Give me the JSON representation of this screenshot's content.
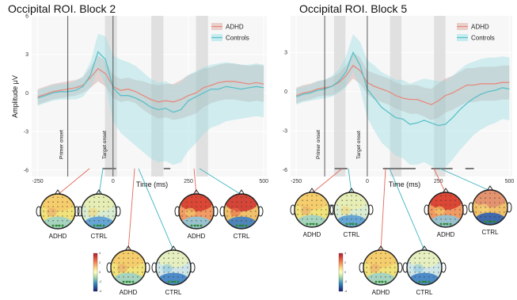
{
  "chart_data": [
    {
      "type": "line",
      "title": "Occipital ROI. Block 2",
      "xlabel": "Time (ms)",
      "ylabel": "Amplitude μV",
      "xlim": [
        -270,
        510
      ],
      "ylim": [
        -6.5,
        6
      ],
      "xticks": [
        "-250",
        "0",
        "250",
        "500"
      ],
      "xtick_values": [
        -250,
        0,
        250,
        500
      ],
      "yticks": [
        "6",
        "3",
        "0",
        "-3",
        "-6"
      ],
      "ytick_values": [
        6,
        3,
        0,
        -3,
        -6
      ],
      "shaded_windows_ms": [
        [
          -27,
          13
        ],
        [
          127,
          167
        ],
        [
          275,
          315
        ]
      ],
      "vlines": [
        {
          "x": -150,
          "label": "Primer onset"
        },
        {
          "x": 0,
          "label": "Target onset"
        }
      ],
      "significance_bars_ms": [
        [
          -35,
          10
        ],
        [
          168,
          190
        ]
      ],
      "legend": {
        "position": "top-right",
        "entries": [
          "ADHD",
          "Controls"
        ]
      },
      "x": [
        -250,
        -225,
        -200,
        -175,
        -150,
        -125,
        -100,
        -75,
        -50,
        -25,
        0,
        25,
        50,
        75,
        100,
        125,
        150,
        175,
        200,
        225,
        250,
        275,
        300,
        325,
        350,
        375,
        400,
        425,
        450,
        475,
        500
      ],
      "series": [
        {
          "name": "ADHD",
          "color": "#e88a7f",
          "values": [
            -0.3,
            -0.1,
            0.1,
            0.2,
            0.3,
            0.4,
            0.6,
            1.2,
            1.9,
            1.5,
            0.5,
            0.2,
            0.3,
            0.1,
            -0.2,
            -0.5,
            -0.7,
            -0.6,
            -0.7,
            -0.5,
            -0.2,
            0.0,
            0.4,
            0.6,
            0.8,
            0.9,
            0.9,
            0.8,
            0.7,
            0.8,
            0.7
          ],
          "ci_lower": [
            -0.9,
            -0.7,
            -0.5,
            -0.4,
            -0.3,
            -0.2,
            0.0,
            0.4,
            0.9,
            0.5,
            -0.4,
            -0.7,
            -0.6,
            -0.8,
            -1.3,
            -1.7,
            -2.0,
            -1.9,
            -2.1,
            -2.0,
            -1.8,
            -1.6,
            -1.1,
            -0.8,
            -0.6,
            -0.5,
            -0.5,
            -0.6,
            -0.7,
            -0.6,
            -0.7
          ],
          "ci_upper": [
            0.3,
            0.5,
            0.7,
            0.8,
            0.9,
            1.0,
            1.2,
            2.0,
            2.9,
            2.5,
            1.4,
            1.1,
            1.2,
            1.0,
            0.9,
            0.7,
            0.6,
            0.7,
            0.7,
            1.0,
            1.4,
            1.6,
            1.9,
            2.0,
            2.2,
            2.3,
            2.3,
            2.2,
            2.1,
            2.2,
            2.1
          ]
        },
        {
          "name": "Controls",
          "color": "#5bc0c8",
          "values": [
            -0.4,
            -0.2,
            0.0,
            0.1,
            0.1,
            0.2,
            0.5,
            1.4,
            3.2,
            2.6,
            0.4,
            -0.2,
            -0.2,
            -0.4,
            -0.7,
            -1.1,
            -1.3,
            -1.2,
            -1.5,
            -1.3,
            -0.6,
            -0.3,
            0.0,
            0.3,
            0.3,
            0.5,
            0.4,
            0.3,
            0.4,
            0.5,
            0.4
          ],
          "ci_lower": [
            -1.0,
            -0.8,
            -0.6,
            -0.5,
            -0.5,
            -0.5,
            -0.3,
            0.4,
            1.8,
            0.6,
            -2.2,
            -3.1,
            -3.6,
            -4.1,
            -4.6,
            -5.1,
            -5.4,
            -5.3,
            -5.6,
            -5.4,
            -4.5,
            -3.9,
            -3.2,
            -2.7,
            -2.5,
            -2.2,
            -2.1,
            -2.0,
            -1.9,
            -1.8,
            -1.9
          ],
          "ci_upper": [
            0.2,
            0.4,
            0.6,
            0.7,
            0.7,
            0.9,
            1.3,
            2.4,
            4.6,
            4.4,
            2.9,
            2.6,
            2.4,
            2.1,
            1.6,
            1.1,
            0.8,
            0.9,
            0.6,
            0.8,
            1.4,
            1.7,
            2.0,
            2.2,
            2.3,
            2.4,
            2.3,
            2.2,
            2.2,
            2.3,
            2.2
          ]
        }
      ],
      "topomaps": [
        {
          "group": "ADHD"
        },
        {
          "group": "CTRL"
        },
        {
          "group": "ADHD"
        },
        {
          "group": "CTRL"
        },
        {
          "group": "ADHD"
        },
        {
          "group": "CTRL"
        }
      ]
    },
    {
      "type": "line",
      "title": "Occipital ROI. Block 5",
      "xlabel": "Time (ms)",
      "ylabel": "",
      "xlim": [
        -270,
        510
      ],
      "ylim": [
        -6.5,
        5.8
      ],
      "xticks": [
        "-250",
        "0",
        "250",
        "500"
      ],
      "xtick_values": [
        -250,
        0,
        250,
        500
      ],
      "yticks": [
        "3",
        "0",
        "-3",
        "-6"
      ],
      "ytick_values": [
        3,
        0,
        -3,
        -6
      ],
      "shaded_windows_ms": [
        [
          -117,
          -77
        ],
        [
          80,
          120
        ],
        [
          235,
          275
        ]
      ],
      "vlines": [
        {
          "x": -150,
          "label": "Primer onset"
        },
        {
          "x": 0,
          "label": "Target onset"
        }
      ],
      "significance_bars_ms": [
        [
          -115,
          -70
        ],
        [
          55,
          170
        ],
        [
          225,
          300
        ],
        [
          345,
          375
        ]
      ],
      "legend": {
        "position": "top-right",
        "entries": [
          "ADHD",
          "Controls"
        ]
      },
      "x": [
        -250,
        -225,
        -200,
        -175,
        -150,
        -125,
        -100,
        -75,
        -50,
        -25,
        0,
        25,
        50,
        75,
        100,
        125,
        150,
        175,
        200,
        225,
        250,
        275,
        300,
        325,
        350,
        375,
        400,
        425,
        450,
        475,
        500
      ],
      "series": [
        {
          "name": "ADHD",
          "color": "#e88a7f",
          "values": [
            -0.3,
            -0.1,
            0.0,
            0.2,
            0.3,
            0.4,
            0.7,
            1.2,
            2.0,
            1.6,
            0.7,
            0.4,
            0.2,
            0.0,
            -0.3,
            -0.5,
            -0.6,
            -0.6,
            -0.8,
            -1.0,
            -0.7,
            -0.3,
            -0.1,
            0.2,
            0.5,
            0.5,
            0.6,
            0.6,
            0.6,
            0.7,
            0.7
          ],
          "ci_lower": [
            -0.9,
            -0.7,
            -0.6,
            -0.4,
            -0.3,
            -0.3,
            0.0,
            0.4,
            1.0,
            0.6,
            -0.2,
            -0.6,
            -0.8,
            -1.0,
            -1.3,
            -1.5,
            -1.7,
            -1.7,
            -1.9,
            -2.2,
            -2.0,
            -1.6,
            -1.4,
            -1.1,
            -0.8,
            -0.8,
            -0.7,
            -0.7,
            -0.7,
            -0.6,
            -0.6
          ],
          "ci_upper": [
            0.3,
            0.5,
            0.6,
            0.8,
            0.9,
            1.1,
            1.4,
            2.0,
            3.0,
            2.6,
            1.6,
            1.4,
            1.2,
            1.0,
            0.7,
            0.5,
            0.5,
            0.5,
            0.3,
            0.2,
            0.6,
            1.0,
            1.2,
            1.5,
            1.8,
            1.8,
            1.9,
            1.9,
            1.9,
            2.0,
            2.0
          ]
        },
        {
          "name": "Controls",
          "color": "#5bc0c8",
          "values": [
            -0.4,
            -0.2,
            -0.1,
            0.1,
            0.2,
            0.4,
            0.8,
            1.5,
            3.0,
            2.0,
            0.2,
            -0.5,
            -1.2,
            -1.6,
            -2.0,
            -2.1,
            -2.5,
            -2.4,
            -2.2,
            -2.4,
            -2.6,
            -2.5,
            -2.0,
            -1.4,
            -0.9,
            -0.5,
            -0.2,
            0.0,
            0.1,
            0.3,
            0.2
          ],
          "ci_lower": [
            -1.0,
            -0.8,
            -0.7,
            -0.6,
            -0.5,
            -0.4,
            -0.1,
            0.3,
            1.6,
            0.2,
            -2.0,
            -3.0,
            -3.9,
            -4.4,
            -4.9,
            -5.1,
            -5.6,
            -5.6,
            -5.4,
            -5.7,
            -6.0,
            -5.8,
            -5.2,
            -4.5,
            -3.9,
            -3.3,
            -2.9,
            -2.6,
            -2.4,
            -2.1,
            -2.2
          ],
          "ci_upper": [
            0.2,
            0.4,
            0.5,
            0.8,
            0.9,
            1.2,
            1.7,
            2.7,
            4.4,
            3.8,
            2.4,
            2.0,
            1.5,
            1.2,
            0.9,
            0.9,
            0.6,
            0.8,
            1.0,
            0.9,
            0.8,
            0.8,
            1.2,
            1.7,
            2.1,
            2.3,
            2.5,
            2.6,
            2.6,
            2.7,
            2.6
          ]
        }
      ],
      "topomaps": [
        {
          "group": "ADHD"
        },
        {
          "group": "CTRL"
        },
        {
          "group": "ADHD"
        },
        {
          "group": "CTRL"
        },
        {
          "group": "ADHD"
        },
        {
          "group": "CTRL"
        }
      ]
    }
  ],
  "colorbar": {
    "tick_labels": [
      "4",
      "2",
      "0",
      "-2",
      "-4"
    ],
    "tick_values": [
      4,
      2,
      0,
      -2,
      -4
    ]
  }
}
